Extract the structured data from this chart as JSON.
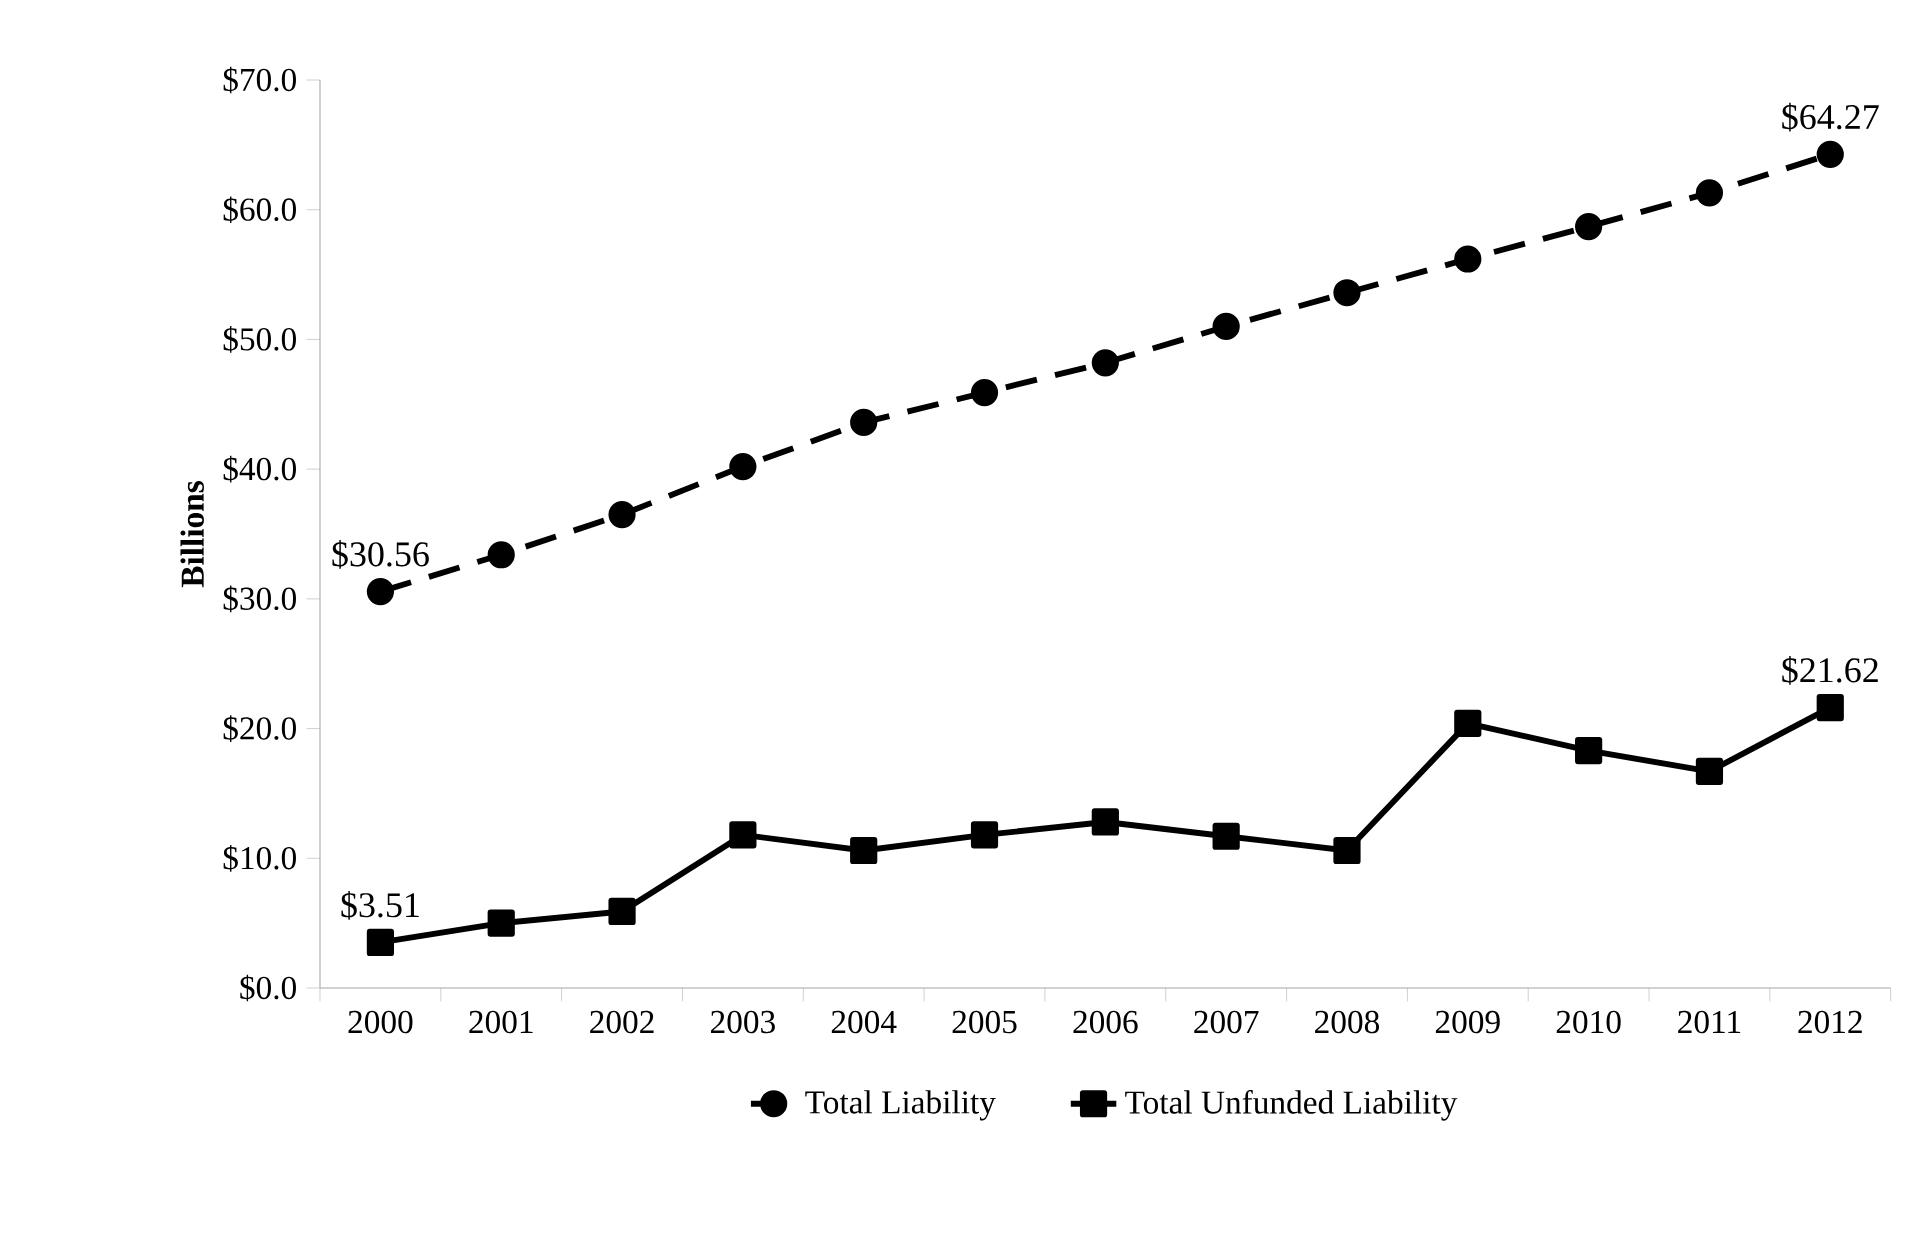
{
  "chart_data": {
    "type": "line",
    "ylabel": "Billions",
    "categories": [
      "2000",
      "2001",
      "2002",
      "2003",
      "2004",
      "2005",
      "2006",
      "2007",
      "2008",
      "2009",
      "2010",
      "2011",
      "2012"
    ],
    "series": [
      {
        "name": "Total Liability",
        "color": "#000000",
        "marker": "circle",
        "line_style": "dashed",
        "values": [
          30.56,
          33.4,
          36.5,
          40.2,
          43.6,
          45.9,
          48.2,
          51.0,
          53.6,
          56.2,
          58.7,
          61.3,
          64.27
        ],
        "value_labels": [
          "$30.56",
          null,
          null,
          null,
          null,
          null,
          null,
          null,
          null,
          null,
          null,
          null,
          "$64.27"
        ]
      },
      {
        "name": "Total Unfunded Liability",
        "color": "#000000",
        "marker": "square",
        "line_style": "solid",
        "values": [
          3.51,
          5.0,
          5.9,
          11.8,
          10.6,
          11.8,
          12.8,
          11.7,
          10.6,
          20.4,
          18.3,
          16.7,
          21.62
        ],
        "value_labels": [
          "$3.51",
          null,
          null,
          null,
          null,
          null,
          null,
          null,
          null,
          null,
          null,
          null,
          "$21.62"
        ]
      }
    ],
    "ylim": [
      0,
      70
    ],
    "yticks": [
      {
        "value": 0,
        "label": "$0.0"
      },
      {
        "value": 10,
        "label": "$10.0"
      },
      {
        "value": 20,
        "label": "$20.0"
      },
      {
        "value": 30,
        "label": "$30.0"
      },
      {
        "value": 40,
        "label": "$40.0"
      },
      {
        "value": 50,
        "label": "$50.0"
      },
      {
        "value": 60,
        "label": "$60.0"
      },
      {
        "value": 70,
        "label": "$70.0"
      }
    ],
    "grid": false,
    "legend": "bottom"
  }
}
